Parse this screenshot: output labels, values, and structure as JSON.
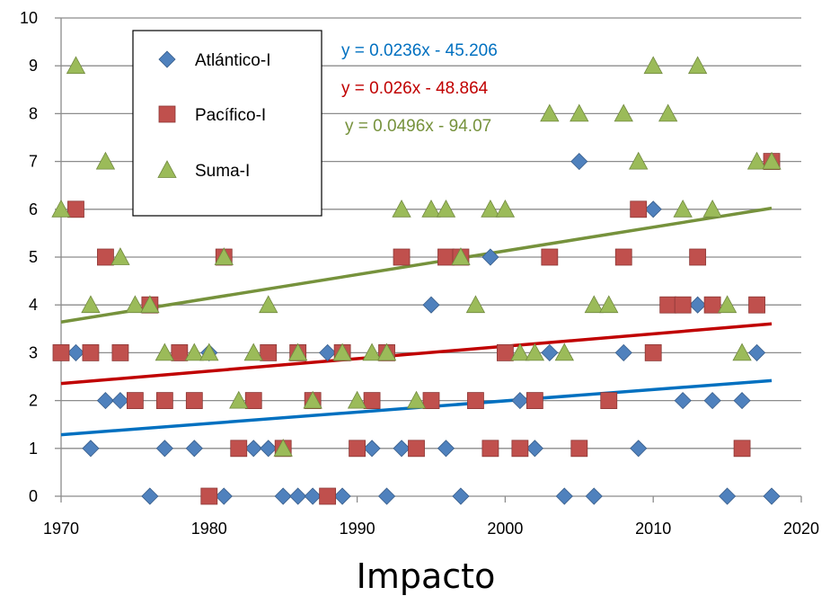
{
  "chart_data": {
    "type": "scatter",
    "title": "",
    "xlabel": "Impacto",
    "ylabel": "",
    "xlim": [
      1970,
      2020
    ],
    "ylim": [
      0,
      10
    ],
    "xticks": [
      1970,
      1980,
      1990,
      2000,
      2010,
      2020
    ],
    "yticks": [
      0,
      1,
      2,
      3,
      4,
      5,
      6,
      7,
      8,
      9,
      10
    ],
    "grid": "horizontal",
    "legend_placement": "top-left",
    "series": [
      {
        "name": "Atlántico-I",
        "marker": "diamond",
        "color": "#4F81BD",
        "points": [
          [
            1971,
            3
          ],
          [
            1972,
            1
          ],
          [
            1973,
            2
          ],
          [
            1974,
            2
          ],
          [
            1976,
            0
          ],
          [
            1977,
            1
          ],
          [
            1979,
            1
          ],
          [
            1980,
            3
          ],
          [
            1981,
            0
          ],
          [
            1983,
            1
          ],
          [
            1984,
            1
          ],
          [
            1985,
            0
          ],
          [
            1986,
            0
          ],
          [
            1987,
            0
          ],
          [
            1988,
            3
          ],
          [
            1989,
            0
          ],
          [
            1991,
            1
          ],
          [
            1992,
            0
          ],
          [
            1993,
            1
          ],
          [
            1995,
            4
          ],
          [
            1996,
            1
          ],
          [
            1997,
            0
          ],
          [
            1999,
            5
          ],
          [
            2001,
            2
          ],
          [
            2002,
            1
          ],
          [
            2003,
            3
          ],
          [
            2004,
            0
          ],
          [
            2005,
            7
          ],
          [
            2006,
            0
          ],
          [
            2008,
            3
          ],
          [
            2009,
            1
          ],
          [
            2010,
            6
          ],
          [
            2012,
            2
          ],
          [
            2013,
            4
          ],
          [
            2014,
            2
          ],
          [
            2015,
            0
          ],
          [
            2016,
            2
          ],
          [
            2017,
            3
          ],
          [
            2018,
            0
          ]
        ]
      },
      {
        "name": "Pacífico-I",
        "marker": "square",
        "color": "#C0504D",
        "points": [
          [
            1970,
            3
          ],
          [
            1971,
            6
          ],
          [
            1972,
            3
          ],
          [
            1973,
            5
          ],
          [
            1974,
            3
          ],
          [
            1975,
            2
          ],
          [
            1976,
            4
          ],
          [
            1977,
            2
          ],
          [
            1978,
            3
          ],
          [
            1979,
            2
          ],
          [
            1980,
            0
          ],
          [
            1981,
            5
          ],
          [
            1982,
            1
          ],
          [
            1983,
            2
          ],
          [
            1984,
            3
          ],
          [
            1985,
            1
          ],
          [
            1986,
            3
          ],
          [
            1987,
            2
          ],
          [
            1988,
            0
          ],
          [
            1989,
            3
          ],
          [
            1990,
            1
          ],
          [
            1991,
            2
          ],
          [
            1992,
            3
          ],
          [
            1993,
            5
          ],
          [
            1994,
            1
          ],
          [
            1995,
            2
          ],
          [
            1996,
            5
          ],
          [
            1997,
            5
          ],
          [
            1998,
            2
          ],
          [
            1999,
            1
          ],
          [
            2000,
            3
          ],
          [
            2001,
            1
          ],
          [
            2002,
            2
          ],
          [
            2003,
            5
          ],
          [
            2005,
            1
          ],
          [
            2007,
            2
          ],
          [
            2008,
            5
          ],
          [
            2009,
            6
          ],
          [
            2010,
            3
          ],
          [
            2011,
            4
          ],
          [
            2012,
            4
          ],
          [
            2013,
            5
          ],
          [
            2014,
            4
          ],
          [
            2016,
            1
          ],
          [
            2017,
            4
          ],
          [
            2018,
            7
          ]
        ]
      },
      {
        "name": "Suma-I",
        "marker": "triangle",
        "color": "#9BBB59",
        "points": [
          [
            1970,
            6
          ],
          [
            1971,
            9
          ],
          [
            1972,
            4
          ],
          [
            1973,
            7
          ],
          [
            1974,
            5
          ],
          [
            1975,
            4
          ],
          [
            1976,
            4
          ],
          [
            1977,
            3
          ],
          [
            1979,
            3
          ],
          [
            1980,
            3
          ],
          [
            1981,
            5
          ],
          [
            1982,
            2
          ],
          [
            1983,
            3
          ],
          [
            1984,
            4
          ],
          [
            1985,
            1
          ],
          [
            1986,
            3
          ],
          [
            1987,
            2
          ],
          [
            1989,
            3
          ],
          [
            1990,
            2
          ],
          [
            1991,
            3
          ],
          [
            1992,
            3
          ],
          [
            1993,
            6
          ],
          [
            1994,
            2
          ],
          [
            1995,
            6
          ],
          [
            1996,
            6
          ],
          [
            1997,
            5
          ],
          [
            1998,
            4
          ],
          [
            1999,
            6
          ],
          [
            2000,
            6
          ],
          [
            2001,
            3
          ],
          [
            2002,
            3
          ],
          [
            2003,
            8
          ],
          [
            2004,
            3
          ],
          [
            2005,
            8
          ],
          [
            2006,
            4
          ],
          [
            2007,
            4
          ],
          [
            2008,
            8
          ],
          [
            2009,
            7
          ],
          [
            2010,
            9
          ],
          [
            2011,
            8
          ],
          [
            2012,
            6
          ],
          [
            2013,
            9
          ],
          [
            2014,
            6
          ],
          [
            2015,
            4
          ],
          [
            2016,
            3
          ],
          [
            2017,
            7
          ],
          [
            2018,
            7
          ]
        ]
      }
    ],
    "trendlines": [
      {
        "series": "Atlántico-I",
        "equation": "y = 0.0236x - 45.206",
        "slope": 0.0236,
        "intercept": -45.206,
        "color": "#0070C0",
        "x_range": [
          1970,
          2018
        ]
      },
      {
        "series": "Pacífico-I",
        "equation": "y = 0.026x - 48.864",
        "slope": 0.026,
        "intercept": -48.864,
        "color": "#C00000",
        "x_range": [
          1970,
          2018
        ]
      },
      {
        "series": "Suma-I",
        "equation": "y = 0.0496x - 94.07",
        "slope": 0.0496,
        "intercept": -94.07,
        "color": "#76923C",
        "x_range": [
          1970,
          2018
        ]
      }
    ]
  }
}
